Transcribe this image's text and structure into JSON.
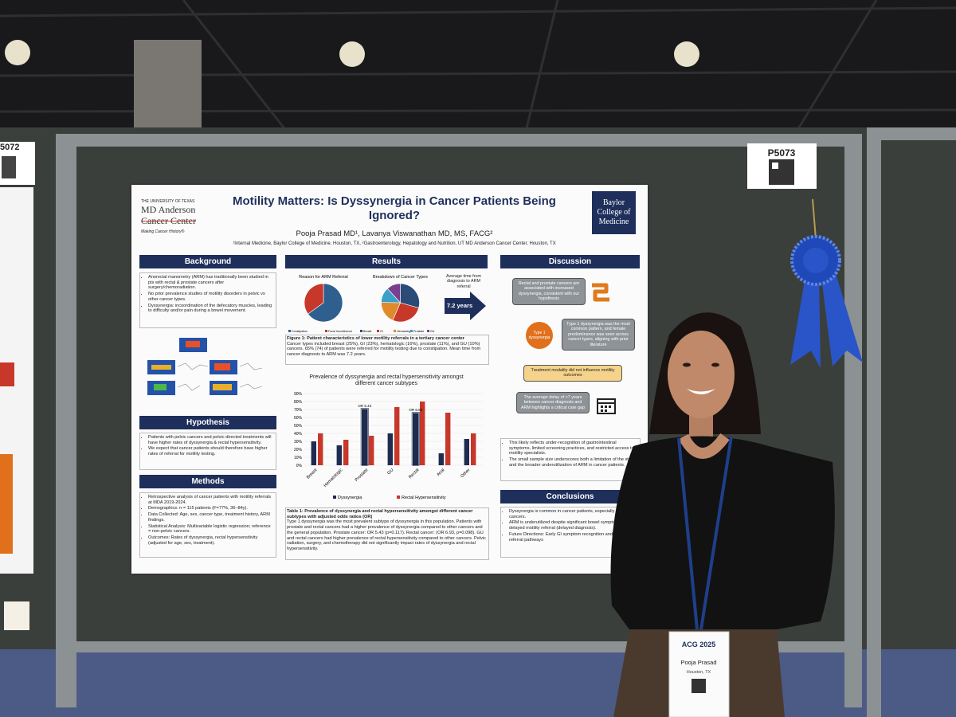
{
  "booth": {
    "left_number": "5072",
    "number": "P5073"
  },
  "poster": {
    "logo_left": {
      "line1": "THE UNIVERSITY OF TEXAS",
      "line2": "MD Anderson",
      "line3": "Cancer Center",
      "tagline": "Making Cancer History®"
    },
    "title": "Motility Matters: Is Dyssynergia in Cancer Patients Being Ignored?",
    "authors": "Pooja Prasad MD¹, Lavanya Viswanathan MD, MS, FACG²",
    "affiliations": "¹Internal Medicine, Baylor College of Medicine, Houston, TX, ²Gastroenterology, Hepatology and Nutrition, UT MD Anderson Cancer Center, Houston, TX",
    "logo_right": "Baylor College of Medicine",
    "background": {
      "heading": "Background",
      "bullets": [
        "Anorectal manometry (ARM) has traditionally been studied in pts with rectal & prostate cancers after surgery/chemoradiation.",
        "No prior prevalence studies of motility disorders in pelvic vs other cancer types.",
        "Dyssynergia: incoordination of the defecatory muscles, leading to difficulty and/or pain during a bowel movement."
      ]
    },
    "hypothesis": {
      "heading": "Hypothesis",
      "bullets": [
        "Patients with pelvic cancers and pelvic-directed treatments will have higher rates of dyssynergia & rectal hypersensitivity.",
        "We expect that cancer patients should therefore have higher rates of referral for motility testing."
      ]
    },
    "methods": {
      "heading": "Methods",
      "bullets": [
        "Retrospective analysis of cancer patients with motility referrals at MDA 2019-2024.",
        "Demographics: n = 115 patients (F=77%, 36–84y).",
        "Data Collected: Age, sex, cancer type, treatment history, ARM findings.",
        "Statistical Analysis: Multivariable logistic regression; reference = non-pelvic cancers.",
        "Outcomes: Rates of dyssynergia, rectal hypersensitivity (adjusted for age, sex, treatment)."
      ]
    },
    "results": {
      "heading": "Results",
      "referral_time_label": "Average time from diagnosis to ARM referral",
      "referral_time": "7.2 years",
      "figure1_caption": "Figure 1: Patient characteristics of lower motility referrals in a tertiary cancer center",
      "figure1_text": "Cancer types included breast (25%), GI (23%), hematologic (16%), prostate (11%), and GU (10%) cancers. 65% (74) of patients were referred for motility testing due to constipation. Mean time from cancer diagnosis to ARM was 7.2 years.",
      "table1_caption": "Table 1: Prevalence of dyssynergia and rectal hypersensitivity amongst different cancer subtypes with adjusted odds ratios (OR)",
      "table1_text": "Type 1 dyssynergia was the most prevalent subtype of dyssynergia in this population. Patients with prostate and rectal cancers had a higher prevalence of dyssynergia compared to other cancers and the general population. Prostate cancer: OR 5.43 (p=0.117). Rectal cancer: (OR 6.93, p=0.098). GU and rectal cancers had higher prevalence of rectal hypersensitivity compared to other cancers. Pelvic radiation, surgery, and chemotherapy did not significantly impact rates of dyssynergia and rectal hypersensitivity."
    },
    "discussion": {
      "heading": "Discussion",
      "box1": "Rectal and prostate cancers are associated with increased dyssynergia, consistent with our hypothesis",
      "badge": "Type 1 dyssynergia",
      "box2": "Type 1 dyssynergia was the most common pattern, and female predominance was seen across cancer types, aligning with prior literature",
      "box3": "Treatment modality did not influence motility outcomes",
      "box4": "The average delay of >7 years between cancer diagnosis and ARM highlights a critical care gap",
      "bullets": [
        "This likely reflects under-recognition of gastrointestinal symptoms, limited screening practices, and restricted access to motility specialists.",
        "The small sample size underscores both a limitation of the study and the broader underutilization of ARM in cancer patients."
      ]
    },
    "conclusions": {
      "heading": "Conclusions",
      "bullets": [
        "Dyssynergia is common in cancer patients, especially pelvic cancers.",
        "ARM is underutilized despite significant bowel symptoms and delayed motility referral (delayed diagnosis).",
        "Future Directions: Early GI symptom recognition and targeted referral pathways"
      ]
    }
  },
  "badge": {
    "event": "ACG 2025",
    "name": "Pooja Prasad",
    "location": "Houston, TX"
  },
  "chart_data": [
    {
      "type": "pie",
      "title": "Reason for ARM Referral",
      "categories": [
        "Constipation",
        "Fecal Incontinence"
      ],
      "values": [
        65,
        35
      ],
      "colors": [
        "#2f5f8f",
        "#c7372a"
      ]
    },
    {
      "type": "pie",
      "title": "Breakdown of Cancer Types",
      "categories": [
        "Breast",
        "GI",
        "Hematologic",
        "Prostate",
        "GU"
      ],
      "values": [
        25,
        23,
        16,
        11,
        10
      ],
      "colors": [
        "#2a4a78",
        "#c7372a",
        "#e08a2c",
        "#3aa0c8",
        "#7b3f8f"
      ]
    },
    {
      "type": "bar",
      "title": "Prevalence of dyssynergia and rectal hypersensitivity amongst different cancer subtypes",
      "categories": [
        "Breast",
        "Hematologic",
        "Prostate",
        "GU",
        "Rectal",
        "Anal",
        "Other"
      ],
      "series": [
        {
          "name": "Dyssynergia",
          "color": "#1f2b4f",
          "values": [
            30,
            25,
            70,
            40,
            65,
            15,
            33
          ]
        },
        {
          "name": "Rectal Hypersensitivity",
          "color": "#c7372a",
          "values": [
            40,
            32,
            37,
            73,
            80,
            66,
            40
          ]
        }
      ],
      "annotations": [
        "OR 5.43",
        "OR 6.93"
      ],
      "ylim": [
        0,
        90
      ],
      "yticks": [
        {
          "value": 0,
          "label": "0%"
        },
        {
          "value": 10,
          "label": "10%"
        },
        {
          "value": 20,
          "label": "20%"
        },
        {
          "value": 30,
          "label": "30%"
        },
        {
          "value": 40,
          "label": "40%"
        },
        {
          "value": 50,
          "label": "50%"
        },
        {
          "value": 60,
          "label": "60%"
        },
        {
          "value": 70,
          "label": "70%"
        },
        {
          "value": 80,
          "label": "80%"
        },
        {
          "value": 90,
          "label": "90%"
        }
      ]
    }
  ]
}
